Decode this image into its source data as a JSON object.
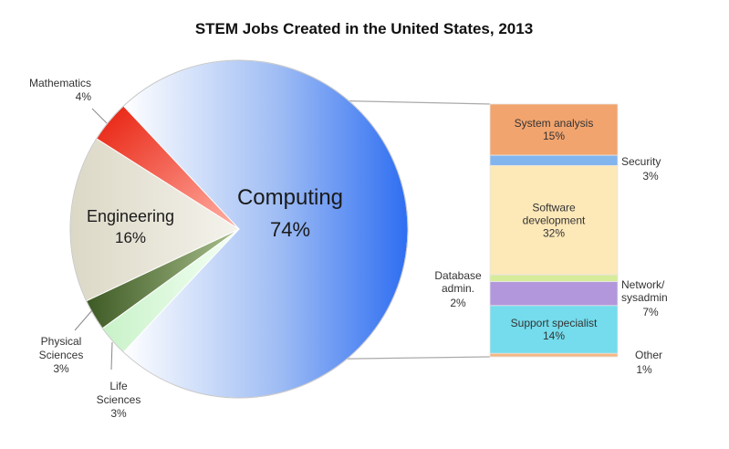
{
  "chart_data": {
    "type": "pie",
    "title": "STEM Jobs Created in the United States, 2013",
    "slices": [
      {
        "label": "Computing",
        "value": 74,
        "value_text": "74%",
        "color": "#4a7ff0"
      },
      {
        "label": "Life Sciences",
        "value": 3,
        "value_text": "3%",
        "color": "#d9f7d9"
      },
      {
        "label": "Physical Sciences",
        "value": 3,
        "value_text": "3%",
        "color": "#4e6a2e"
      },
      {
        "label": "Engineering",
        "value": 16,
        "value_text": "16%",
        "color": "#e3e0d2"
      },
      {
        "label": "Mathematics",
        "value": 4,
        "value_text": "4%",
        "color": "#ef2a14"
      }
    ],
    "breakdown": {
      "of": "Computing",
      "type": "stacked-bar",
      "segments": [
        {
          "label": "System analysis",
          "value": 15,
          "value_text": "15%",
          "color": "#f2a46e"
        },
        {
          "label": "Security",
          "value": 3,
          "value_text": "3%",
          "color": "#82b4ee"
        },
        {
          "label": "Software development",
          "value": 32,
          "value_text": "32%",
          "color": "#fde8b8"
        },
        {
          "label": "Database admin.",
          "value": 2,
          "value_text": "2%",
          "color": "#d7ec9a"
        },
        {
          "label": "Network/ sysadmin",
          "value": 7,
          "value_text": "7%",
          "color": "#b297dc"
        },
        {
          "label": "Support specialist",
          "value": 14,
          "value_text": "14%",
          "color": "#74dcec"
        },
        {
          "label": "Other",
          "value": 1,
          "value_text": "1%",
          "color": "#f4b884"
        }
      ]
    }
  }
}
